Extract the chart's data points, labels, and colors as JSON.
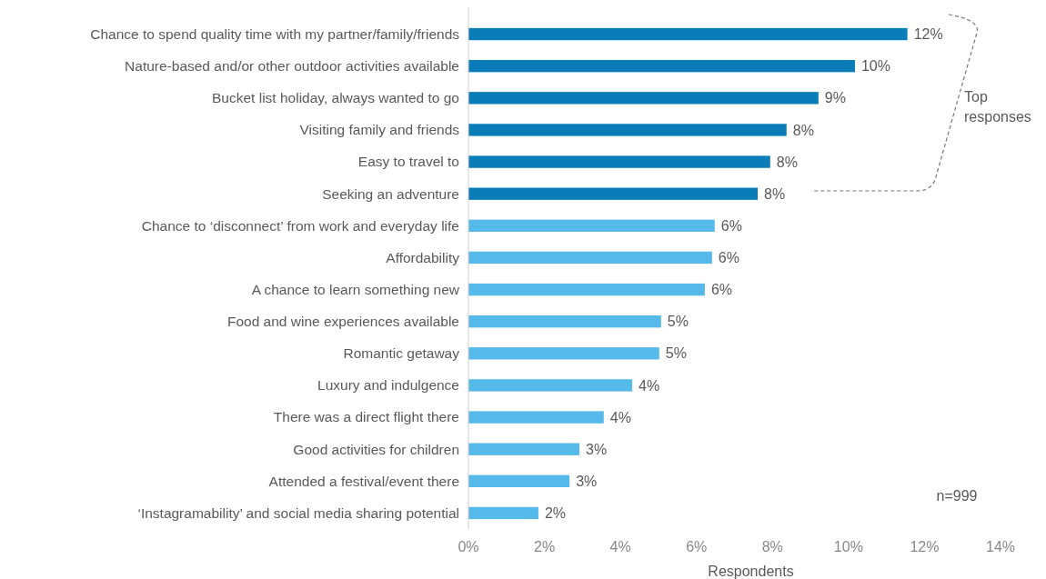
{
  "chart_data": {
    "type": "bar",
    "orientation": "horizontal",
    "xlabel": "Respondents",
    "categories": [
      "Chance to spend quality time with my partner/family/friends",
      "Nature-based and/or other outdoor activities available",
      "Bucket list holiday, always wanted to go",
      "Visiting family and friends",
      "Easy to travel to",
      "Seeking an adventure",
      "Chance to ‘disconnect’ from work and everyday life",
      "Affordability",
      "A chance to learn something new",
      "Food and wine experiences available",
      "Romantic getaway",
      "Luxury and indulgence",
      "There was a direct flight there",
      "Good activities for children",
      "Attended a festival/event there",
      "‘Instagramability’ and social media sharing potential"
    ],
    "values": [
      11.55,
      10.17,
      9.21,
      8.37,
      7.94,
      7.61,
      6.48,
      6.41,
      6.22,
      5.07,
      5.02,
      4.31,
      3.56,
      2.92,
      2.66,
      1.84
    ],
    "value_labels": [
      "12%",
      "10%",
      "9%",
      "8%",
      "8%",
      "8%",
      "6%",
      "6%",
      "6%",
      "5%",
      "5%",
      "4%",
      "4%",
      "3%",
      "3%",
      "2%"
    ],
    "colors": [
      "#0a7db8",
      "#0a7db8",
      "#0a7db8",
      "#0a7db8",
      "#0a7db8",
      "#0a7db8",
      "#55b9e9",
      "#55b9e9",
      "#55b9e9",
      "#55b9e9",
      "#55b9e9",
      "#55b9e9",
      "#55b9e9",
      "#55b9e9",
      "#55b9e9",
      "#55b9e9"
    ],
    "xlim": [
      0,
      14
    ],
    "xticks": [
      {
        "value": 0,
        "label": "0%"
      },
      {
        "value": 2,
        "label": "2%"
      },
      {
        "value": 4,
        "label": "4%"
      },
      {
        "value": 6,
        "label": "6%"
      },
      {
        "value": 8,
        "label": "8%"
      },
      {
        "value": 10,
        "label": "10%"
      },
      {
        "value": 12,
        "label": "12%"
      },
      {
        "value": 14,
        "label": "14%"
      }
    ],
    "grid": false,
    "annotations": [
      "Top responses",
      "n=999"
    ]
  }
}
